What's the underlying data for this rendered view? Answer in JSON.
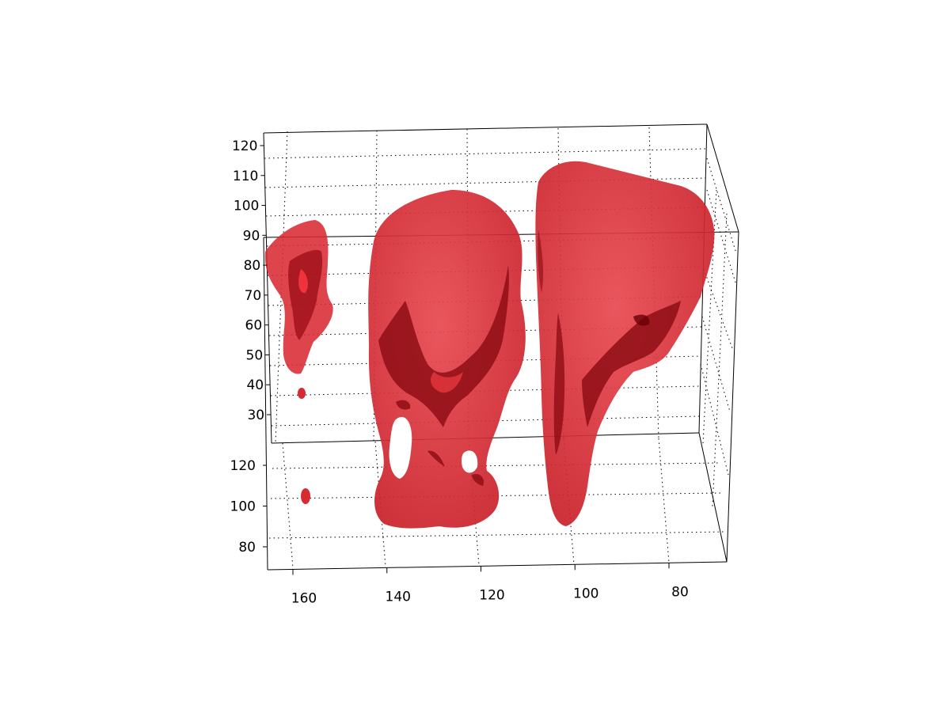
{
  "chart_data": {
    "type": "isosurface-3d",
    "title": "",
    "xlabel": "",
    "ylabel": "",
    "zlabel": "",
    "x_ticks": [
      160,
      140,
      120,
      100,
      80
    ],
    "y_ticks": [
      80,
      100,
      120
    ],
    "z_ticks": [
      30,
      40,
      50,
      60,
      70,
      80,
      90,
      100,
      110,
      120
    ],
    "xlim": [
      166,
      68
    ],
    "ylim": [
      70,
      130
    ],
    "zlim": [
      22,
      124
    ],
    "grid": true,
    "legend": "none",
    "colors": {
      "surface": "#e0343c",
      "surface_dark": "#8a0a10",
      "surface_highlight": "#ff5a60",
      "axes": "#000000"
    }
  }
}
